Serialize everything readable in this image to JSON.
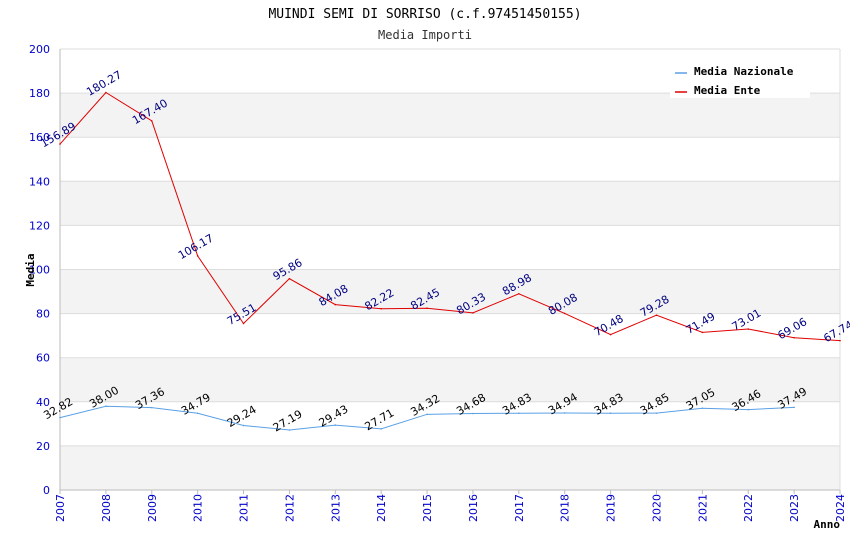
{
  "chart_data": {
    "type": "line",
    "title": "MUINDI SEMI DI SORRISO (c.f.97451450155)",
    "subtitle": "Media Importi",
    "xlabel": "Anno",
    "ylabel": "Media",
    "ylim": [
      0,
      200
    ],
    "yticks": [
      0,
      20,
      40,
      60,
      80,
      100,
      120,
      140,
      160,
      180,
      200
    ],
    "x": [
      "2007",
      "2008",
      "2009",
      "2010",
      "2011",
      "2012",
      "2013",
      "2014",
      "2015",
      "2016",
      "2017",
      "2018",
      "2019",
      "2020",
      "2021",
      "2022",
      "2023",
      "2024"
    ],
    "legend_position": "top-right",
    "series": [
      {
        "name": "Media Nazionale",
        "color": "#5aa0e6",
        "label_color": "#000000",
        "values": [
          32.82,
          38.0,
          37.36,
          34.79,
          29.24,
          27.19,
          29.43,
          27.71,
          34.32,
          34.68,
          34.83,
          34.94,
          34.83,
          34.85,
          37.05,
          36.46,
          37.49,
          null
        ],
        "labels": [
          "32.82",
          "38.00",
          "37.36",
          "34.79",
          "29.24",
          "27.19",
          "29.43",
          "27.71",
          "34.32",
          "34.68",
          "34.83",
          "34.94",
          "34.83",
          "34.85",
          "37.05",
          "36.46",
          "37.49",
          ""
        ]
      },
      {
        "name": "Media Ente",
        "color": "#e00000",
        "label_color": "#000080",
        "values": [
          156.89,
          180.27,
          167.4,
          106.17,
          75.51,
          95.86,
          84.08,
          82.22,
          82.45,
          80.33,
          88.98,
          80.08,
          70.48,
          79.28,
          71.49,
          73.01,
          69.06,
          67.74
        ],
        "labels": [
          "156.89",
          "180.27",
          "167.40",
          "106.17",
          "75.51",
          "95.86",
          "84.08",
          "82.22",
          "82.45",
          "80.33",
          "88.98",
          "80.08",
          "70.48",
          "79.28",
          "71.49",
          "73.01",
          "69.06",
          "67.74"
        ]
      }
    ]
  }
}
